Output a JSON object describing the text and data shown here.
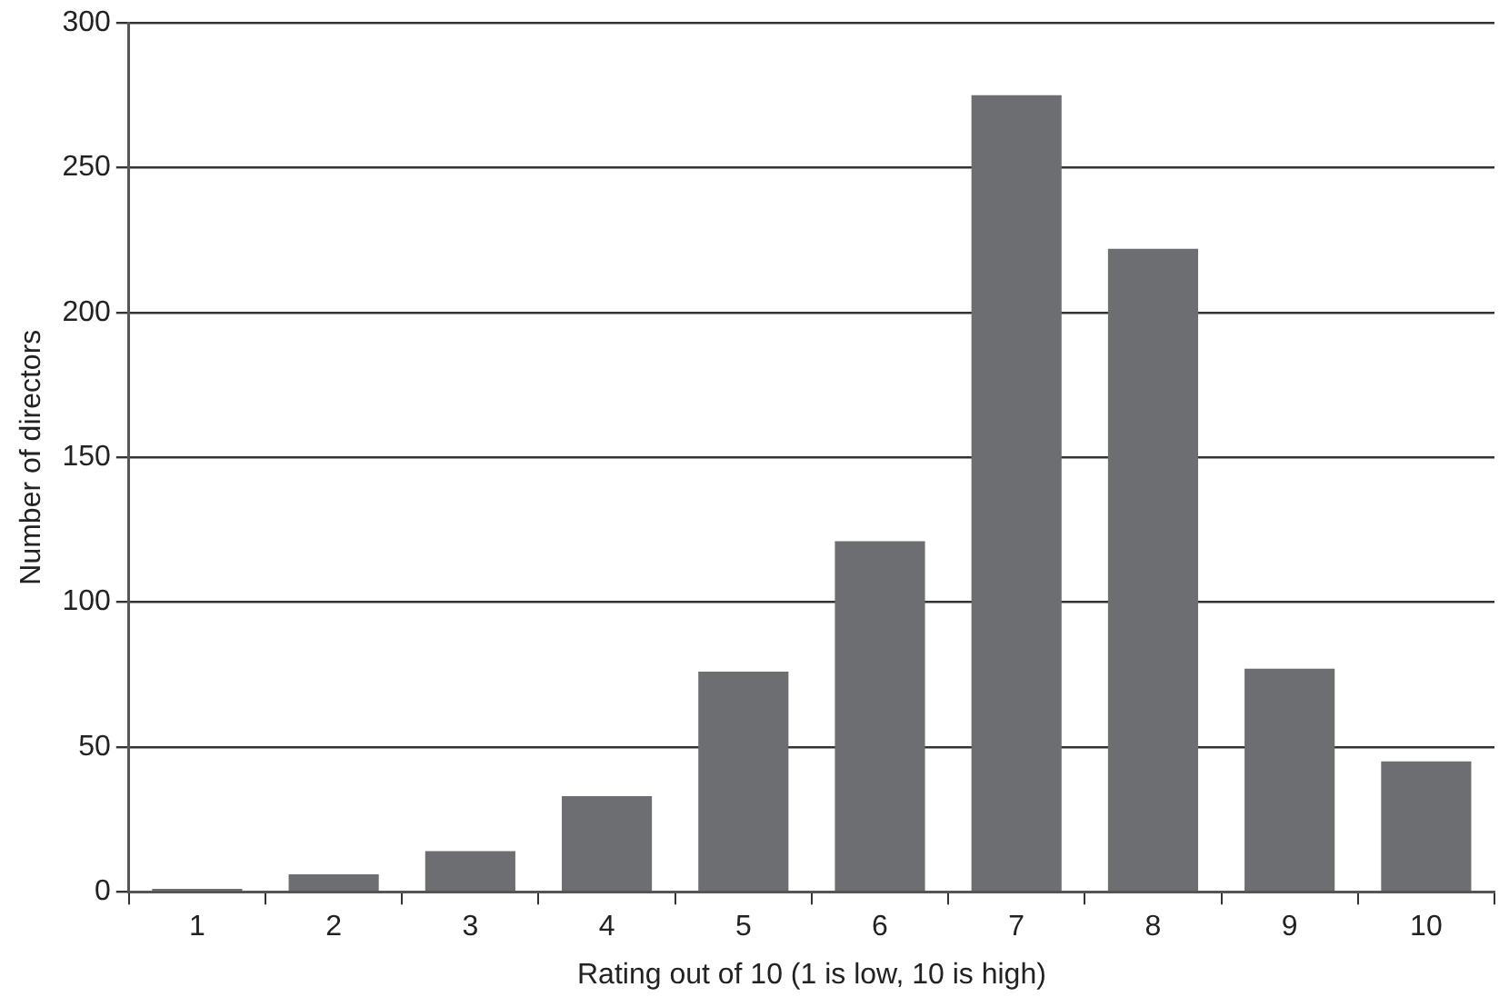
{
  "chart_data": {
    "type": "bar",
    "xlabel": "Rating out of 10 (1 is low, 10 is high)",
    "ylabel": "Number of directors",
    "categories": [
      "1",
      "2",
      "3",
      "4",
      "5",
      "6",
      "7",
      "8",
      "9",
      "10"
    ],
    "values": [
      1,
      6,
      14,
      33,
      76,
      121,
      275,
      222,
      77,
      45
    ],
    "color": "#6d6e72",
    "ylim": [
      0,
      300
    ],
    "yticks": [
      0,
      50,
      100,
      150,
      200,
      250,
      300
    ],
    "grid": "y",
    "legend": false
  }
}
